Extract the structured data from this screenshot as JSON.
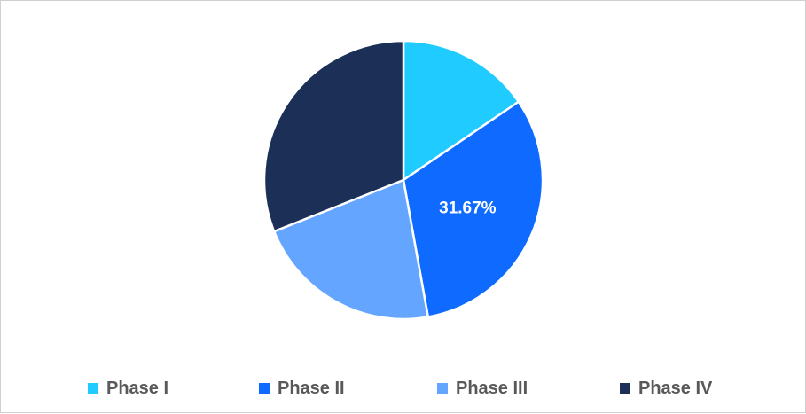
{
  "chart_data": {
    "type": "pie",
    "title": "",
    "categories": [
      "Phase I",
      "Phase II",
      "Phase III",
      "Phase IV"
    ],
    "values": [
      15.5,
      31.67,
      21.8,
      31.03
    ],
    "unit": "%",
    "colors": [
      "#1fcbff",
      "#0f6bff",
      "#64a6ff",
      "#1c2f56"
    ],
    "start_angle_deg": 0,
    "direction": "clockwise",
    "data_labels": [
      "",
      "31.67%",
      "",
      ""
    ],
    "legend_position": "bottom"
  },
  "legend": {
    "items": [
      {
        "label": "Phase I",
        "color": "#1fcbff"
      },
      {
        "label": "Phase II",
        "color": "#0f6bff"
      },
      {
        "label": "Phase III",
        "color": "#64a6ff"
      },
      {
        "label": "Phase IV",
        "color": "#1c2f56"
      }
    ]
  }
}
